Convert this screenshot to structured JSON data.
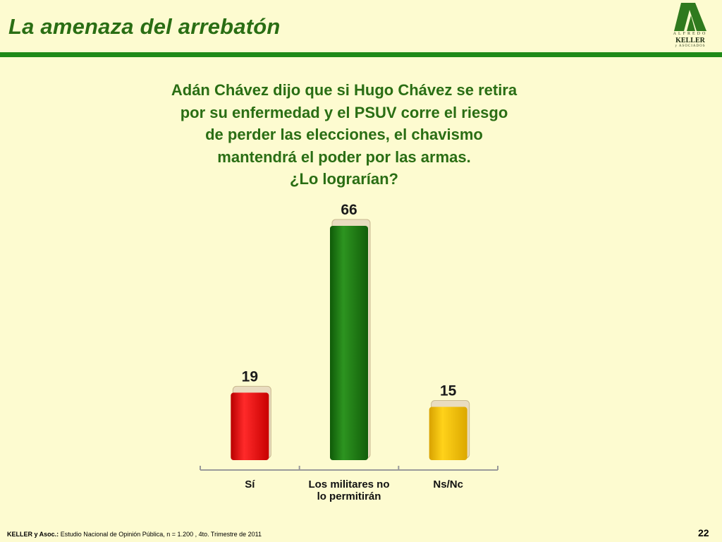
{
  "slide": {
    "title": "La amenaza del arrebatón",
    "page_number": "22"
  },
  "logo": {
    "line1": "ALFREDO",
    "line2": "KELLER",
    "line3": "y ASOCIADOS"
  },
  "question": {
    "lines": [
      "Adán Chávez dijo que si Hugo Chávez se retira",
      "por su enfermedad y el PSUV corre el riesgo",
      "de perder las elecciones, el chavismo",
      "mantendrá el poder por las armas.",
      "¿Lo lograrían?"
    ]
  },
  "footer": {
    "source_label": "KELLER y Asoc.:",
    "source_text": "Estudio Nacional de Opinión Pública, n = 1.200 , 4to. Trimestre de 2011"
  },
  "colors": {
    "background": "#fdfbd0",
    "title_green": "#2a6e14",
    "rule_green": "#1f8a18",
    "bar_red": "#ee1111",
    "bar_green": "#1f7a12",
    "bar_yellow": "#f5c400"
  },
  "chart_data": {
    "type": "bar",
    "title": "",
    "xlabel": "",
    "ylabel": "",
    "categories": [
      [
        "Sí"
      ],
      [
        "Los militares no",
        "lo permitirán"
      ],
      [
        "Ns/Nc"
      ]
    ],
    "values": [
      19,
      66,
      15
    ],
    "value_labels": [
      "19",
      "66",
      "15"
    ],
    "bar_colors": [
      "#ee1111",
      "#1f7a12",
      "#f5c400"
    ],
    "ylim": [
      0,
      66
    ],
    "grid": false,
    "legend": "none"
  }
}
